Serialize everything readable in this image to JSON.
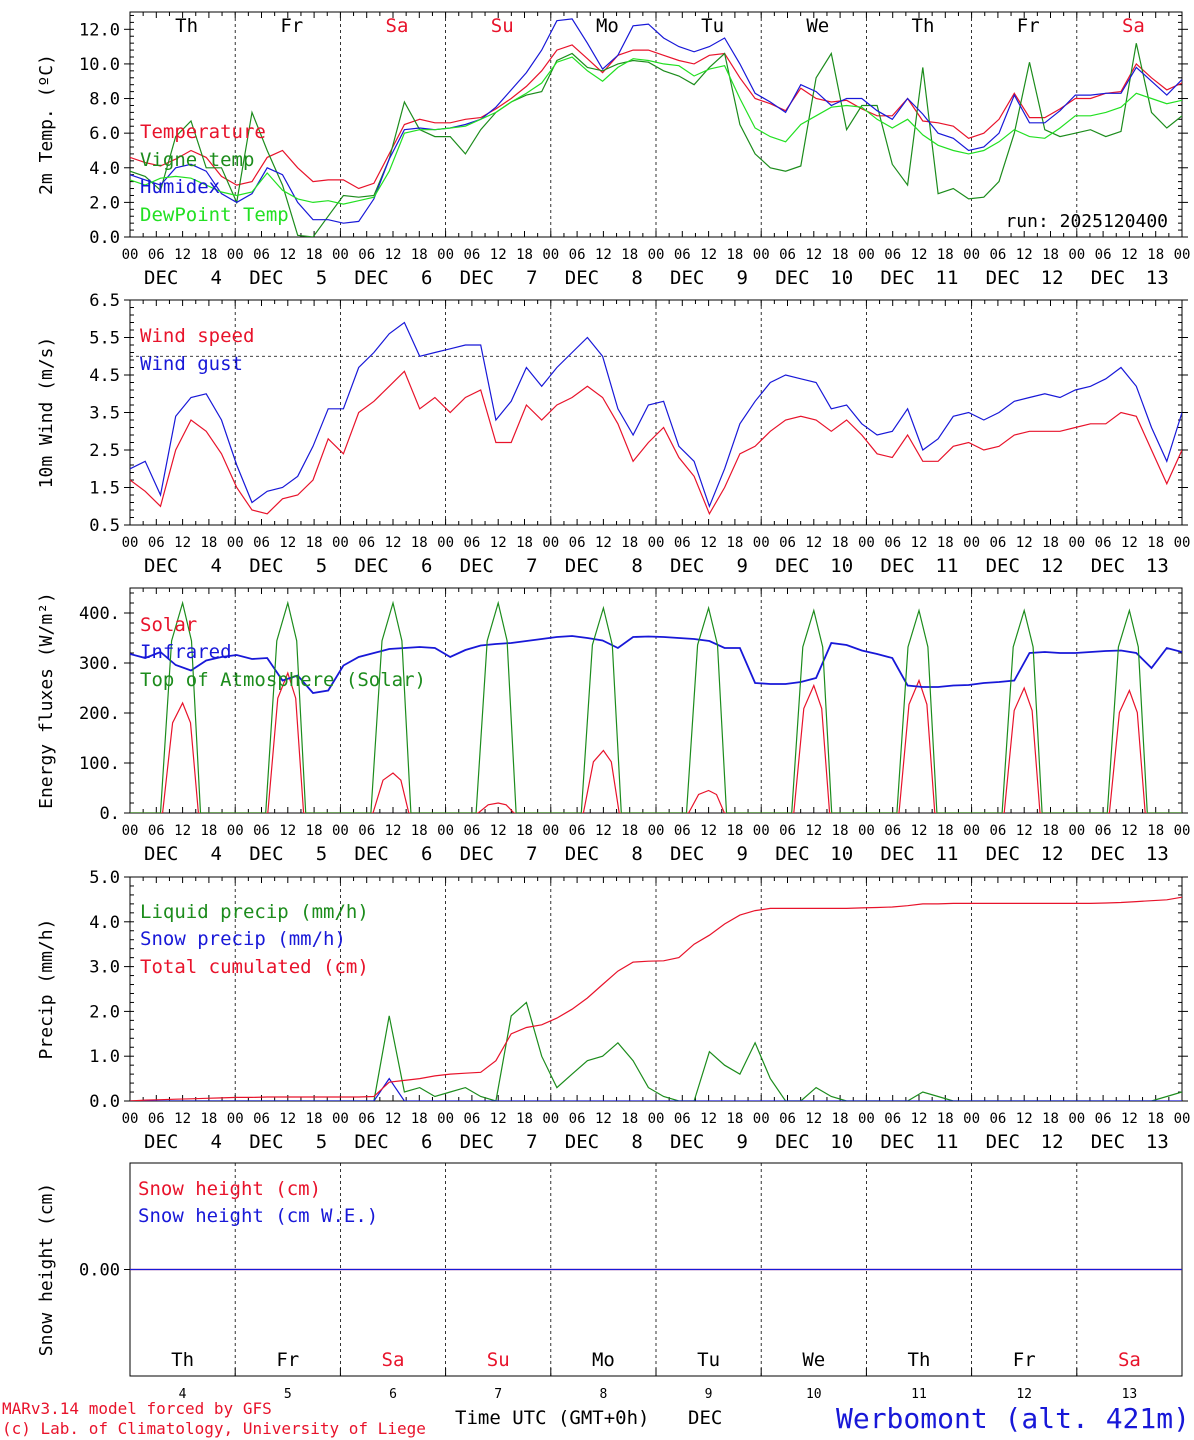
{
  "chart_data": {
    "type": "line",
    "run_label": "run: 2025120400",
    "x_axis": {
      "hour_ticks": [
        "00",
        "06",
        "12",
        "18"
      ],
      "final_tick": "00",
      "month": "DEC",
      "dates": [
        4,
        5,
        6,
        7,
        8,
        9,
        10,
        11,
        12,
        13
      ],
      "weekdays": [
        "Th",
        "Fr",
        "Sa",
        "Su",
        "Mo",
        "Tu",
        "We",
        "Th",
        "Fr",
        "Sa"
      ],
      "weekend_color": "#e8132b",
      "weekday_color": "#000000",
      "xlabel": "Time UTC (GMT+0h)",
      "xlabel_month": "DEC"
    },
    "panels": [
      {
        "id": "temp",
        "ylabel": "2m Temp. (ºC)",
        "ylim": [
          0,
          13
        ],
        "yticks": [
          "0.0",
          "2.0",
          "4.0",
          "6.0",
          "8.0",
          "10.0",
          "12.0"
        ],
        "series": [
          {
            "name": "Temperature",
            "color": "#e8132b",
            "values": [
              4.6,
              4.3,
              4.1,
              4.5,
              5.0,
              4.6,
              3.5,
              3.0,
              3.2,
              4.6,
              5.0,
              4.0,
              3.2,
              3.3,
              3.3,
              2.8,
              3.1,
              4.8,
              6.5,
              6.8,
              6.6,
              6.6,
              6.8,
              6.9,
              7.4,
              8.0,
              8.7,
              9.6,
              10.8,
              11.1,
              10.3,
              9.5,
              10.5,
              10.8,
              10.8,
              10.5,
              10.2,
              10.0,
              10.5,
              10.6,
              9.2,
              8.0,
              7.7,
              7.3,
              8.6,
              8.0,
              7.8,
              7.9,
              7.4,
              7.0,
              7.0,
              8.0,
              6.7,
              6.6,
              6.4,
              5.7,
              6.0,
              6.8,
              8.3,
              6.9,
              6.9,
              7.4,
              8.0,
              8.0,
              8.3,
              8.4,
              10.0,
              9.2,
              8.5,
              8.9
            ]
          },
          {
            "name": "Vigne temp",
            "color": "#1c8c1c",
            "values": [
              3.8,
              3.5,
              2.7,
              5.8,
              6.7,
              4.0,
              4.0,
              2.0,
              7.2,
              5.0,
              3.0,
              0.1,
              0.0,
              1.2,
              2.4,
              2.3,
              2.4,
              4.5,
              7.8,
              6.2,
              5.8,
              5.8,
              4.8,
              6.2,
              7.2,
              7.8,
              8.2,
              8.4,
              10.2,
              10.6,
              9.8,
              9.6,
              10.0,
              10.2,
              10.1,
              9.6,
              9.3,
              8.8,
              9.8,
              10.6,
              6.5,
              4.8,
              4.0,
              3.8,
              4.1,
              9.2,
              10.6,
              6.2,
              7.6,
              7.6,
              4.2,
              3.0,
              9.8,
              2.5,
              2.8,
              2.2,
              2.3,
              3.2,
              6.0,
              10.1,
              6.2,
              5.8,
              6.0,
              6.2,
              5.8,
              6.1,
              11.2,
              7.2,
              6.3,
              7.0
            ]
          },
          {
            "name": "Humidex",
            "color": "#1818d8",
            "values": [
              3.6,
              3.3,
              3.0,
              4.0,
              4.2,
              3.8,
              2.5,
              2.0,
              2.5,
              4.0,
              3.6,
              2.0,
              1.0,
              1.0,
              0.8,
              0.9,
              2.2,
              4.5,
              6.2,
              6.3,
              6.2,
              6.3,
              6.5,
              6.8,
              7.5,
              8.5,
              9.5,
              10.8,
              12.5,
              12.6,
              11.2,
              9.7,
              10.5,
              12.2,
              12.3,
              11.5,
              11.0,
              10.7,
              11.0,
              11.5,
              10.0,
              8.3,
              7.8,
              7.2,
              8.8,
              8.4,
              7.6,
              8.0,
              8.0,
              7.3,
              6.8,
              8.0,
              7.1,
              6.0,
              5.7,
              5.0,
              5.2,
              6.0,
              8.2,
              6.6,
              6.6,
              7.3,
              8.2,
              8.2,
              8.3,
              8.3,
              9.8,
              9.0,
              8.2,
              9.1
            ]
          },
          {
            "name": "DewPoint Temp",
            "color": "#22e022",
            "values": [
              3.3,
              3.0,
              3.4,
              3.5,
              3.4,
              3.0,
              2.6,
              2.4,
              2.6,
              3.7,
              2.7,
              2.2,
              2.0,
              2.1,
              1.9,
              2.1,
              2.3,
              3.8,
              6.0,
              6.2,
              6.2,
              6.3,
              6.4,
              6.8,
              7.2,
              7.8,
              8.3,
              8.9,
              10.1,
              10.4,
              9.6,
              9.0,
              9.8,
              10.3,
              10.2,
              10.0,
              9.9,
              9.3,
              9.7,
              9.9,
              8.0,
              6.3,
              5.8,
              5.5,
              6.5,
              7.0,
              7.5,
              7.6,
              7.5,
              6.8,
              6.3,
              6.8,
              5.9,
              5.3,
              5.0,
              4.8,
              5.0,
              5.5,
              6.2,
              5.8,
              5.7,
              6.3,
              7.0,
              7.0,
              7.2,
              7.5,
              8.3,
              8.0,
              7.7,
              7.9
            ]
          }
        ]
      },
      {
        "id": "wind",
        "ylabel": "10m Wind (m/s)",
        "ylim": [
          0.5,
          6.5
        ],
        "yticks": [
          "0.5",
          "1.5",
          "2.5",
          "3.5",
          "4.5",
          "5.5",
          "6.5"
        ],
        "hline": 5.0,
        "series": [
          {
            "name": "Wind speed",
            "color": "#e8132b",
            "values": [
              1.7,
              1.4,
              1.0,
              2.5,
              3.3,
              3.0,
              2.4,
              1.5,
              0.9,
              0.8,
              1.2,
              1.3,
              1.7,
              2.8,
              2.4,
              3.5,
              3.8,
              4.2,
              4.6,
              3.6,
              3.9,
              3.5,
              3.9,
              4.1,
              2.7,
              2.7,
              3.7,
              3.3,
              3.7,
              3.9,
              4.2,
              3.9,
              3.2,
              2.2,
              2.7,
              3.1,
              2.3,
              1.8,
              0.8,
              1.5,
              2.4,
              2.6,
              3.0,
              3.3,
              3.4,
              3.3,
              3.0,
              3.3,
              2.9,
              2.4,
              2.3,
              2.9,
              2.2,
              2.2,
              2.6,
              2.7,
              2.5,
              2.6,
              2.9,
              3.0,
              3.0,
              3.0,
              3.1,
              3.2,
              3.2,
              3.5,
              3.4,
              2.5,
              1.6,
              2.5
            ]
          },
          {
            "name": "Wind gust",
            "color": "#1818d8",
            "values": [
              2.0,
              2.2,
              1.3,
              3.4,
              3.9,
              4.0,
              3.3,
              2.1,
              1.1,
              1.4,
              1.5,
              1.8,
              2.6,
              3.6,
              3.6,
              4.7,
              5.1,
              5.6,
              5.9,
              5.0,
              5.1,
              5.2,
              5.3,
              5.3,
              3.3,
              3.8,
              4.7,
              4.2,
              4.7,
              5.1,
              5.5,
              5.0,
              3.6,
              2.9,
              3.7,
              3.8,
              2.6,
              2.2,
              1.0,
              2.0,
              3.2,
              3.8,
              4.3,
              4.5,
              4.4,
              4.3,
              3.6,
              3.7,
              3.2,
              2.9,
              3.0,
              3.6,
              2.5,
              2.8,
              3.4,
              3.5,
              3.3,
              3.5,
              3.8,
              3.9,
              4.0,
              3.9,
              4.1,
              4.2,
              4.4,
              4.7,
              4.2,
              3.1,
              2.2,
              3.5
            ]
          }
        ]
      },
      {
        "id": "energy",
        "ylabel": "Energy fluxes (W/m²)",
        "ylim": [
          0,
          450
        ],
        "yticks": [
          "0.",
          "100.",
          "200.",
          "300.",
          "400."
        ],
        "series": [
          {
            "name": "Solar",
            "color": "#e8132b",
            "daily_peaks": [
              220,
              280,
              80,
              20,
              125,
              45,
              255,
              265,
              250,
              245
            ]
          },
          {
            "name": "Infrared",
            "color": "#1818d8",
            "values": [
              318,
              310,
              322,
              296,
              285,
              305,
              312,
              316,
              308,
              310,
              265,
              275,
              240,
              245,
              295,
              312,
              320,
              328,
              330,
              332,
              330,
              312,
              326,
              335,
              338,
              340,
              344,
              348,
              352,
              354,
              350,
              345,
              330,
              352,
              353,
              352,
              350,
              348,
              344,
              330,
              330,
              260,
              258,
              258,
              262,
              270,
              340,
              336,
              325,
              318,
              310,
              255,
              252,
              252,
              255,
              256,
              260,
              262,
              265,
              320,
              322,
              320,
              320,
              322,
              324,
              325,
              320,
              290,
              330,
              322
            ]
          },
          {
            "name": "Top of Atmosphere (Solar)",
            "color": "#1c8c1c",
            "daily_peaks": [
              420,
              420,
              420,
              420,
              410,
              410,
              405,
              405,
              405,
              405
            ]
          }
        ]
      },
      {
        "id": "precip",
        "ylabel": "Precip (mm/h)",
        "ylim": [
          0,
          5
        ],
        "yticks": [
          "0.0",
          "1.0",
          "2.0",
          "3.0",
          "4.0",
          "5.0"
        ],
        "series": [
          {
            "name": "Liquid precip (mm/h)",
            "color": "#1c8c1c",
            "values": [
              0,
              0,
              0,
              0,
              0,
              0,
              0,
              0,
              0,
              0,
              0,
              0,
              0,
              0,
              0,
              0,
              0,
              1.9,
              0.2,
              0.3,
              0.1,
              0.2,
              0.3,
              0.1,
              0,
              1.9,
              2.2,
              1.0,
              0.3,
              0.6,
              0.9,
              1.0,
              1.3,
              0.9,
              0.3,
              0.1,
              0,
              0,
              1.1,
              0.8,
              0.6,
              1.3,
              0.5,
              0,
              0,
              0.3,
              0.1,
              0,
              0,
              0,
              0,
              0,
              0.2,
              0.1,
              0,
              0,
              0,
              0,
              0,
              0,
              0,
              0,
              0,
              0,
              0,
              0,
              0,
              0,
              0.1,
              0.2
            ]
          },
          {
            "name": "Snow precip (mm/h)",
            "color": "#1818d8",
            "values": [
              0,
              0,
              0,
              0,
              0,
              0,
              0,
              0,
              0,
              0,
              0,
              0,
              0,
              0,
              0,
              0,
              0,
              0.5,
              0,
              0,
              0,
              0,
              0,
              0,
              0,
              0,
              0,
              0,
              0,
              0,
              0,
              0,
              0,
              0,
              0,
              0,
              0,
              0,
              0,
              0,
              0,
              0,
              0,
              0,
              0,
              0,
              0,
              0,
              0,
              0,
              0,
              0,
              0,
              0,
              0,
              0,
              0,
              0,
              0,
              0,
              0,
              0,
              0,
              0,
              0,
              0,
              0,
              0,
              0,
              0
            ]
          },
          {
            "name": "Total cumulated (cm)",
            "color": "#e8132b",
            "values": [
              0.0,
              0.02,
              0.03,
              0.04,
              0.05,
              0.06,
              0.07,
              0.08,
              0.08,
              0.09,
              0.09,
              0.09,
              0.09,
              0.09,
              0.09,
              0.09,
              0.1,
              0.42,
              0.46,
              0.5,
              0.56,
              0.6,
              0.62,
              0.64,
              0.9,
              1.5,
              1.64,
              1.7,
              1.85,
              2.05,
              2.3,
              2.6,
              2.9,
              3.1,
              3.12,
              3.13,
              3.2,
              3.5,
              3.7,
              3.95,
              4.15,
              4.25,
              4.3,
              4.3,
              4.3,
              4.3,
              4.3,
              4.3,
              4.31,
              4.32,
              4.33,
              4.36,
              4.4,
              4.4,
              4.41,
              4.41,
              4.41,
              4.41,
              4.41,
              4.41,
              4.41,
              4.41,
              4.41,
              4.41,
              4.42,
              4.43,
              4.45,
              4.47,
              4.49,
              4.55
            ]
          }
        ]
      },
      {
        "id": "snow",
        "ylabel": "Snow height (cm)",
        "ylim": [
          -1,
          1
        ],
        "yticks": [
          "0.00"
        ],
        "series": [
          {
            "name": "Snow height (cm)",
            "color": "#e8132b",
            "values": [
              0,
              0
            ]
          },
          {
            "name": "Snow height (cm W.E.)",
            "color": "#1818d8",
            "values": [
              0,
              0
            ]
          }
        ]
      }
    ]
  },
  "footer": {
    "credit_line1": "MARv3.14 model forced by GFS",
    "credit_line2": "(c) Lab. of Climatology, University of Liege",
    "credit_color": "#e8132b",
    "station": "Werbomont (alt. 421m)",
    "station_color": "#1818d8"
  }
}
